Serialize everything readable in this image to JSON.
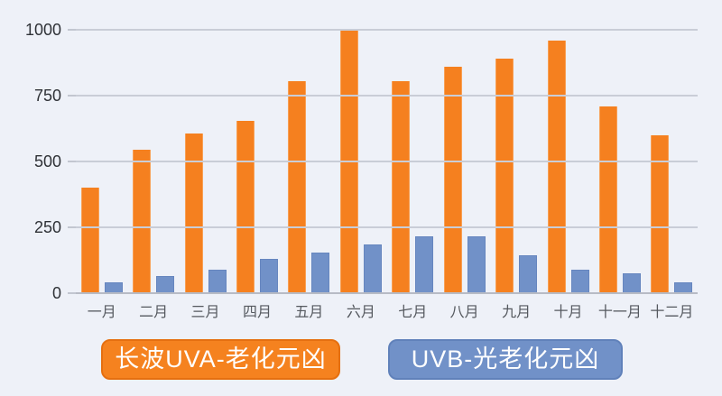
{
  "chart_data": {
    "type": "bar",
    "title": "",
    "xlabel": "",
    "ylabel": "",
    "categories": [
      "一月",
      "二月",
      "三月",
      "四月",
      "五月",
      "六月",
      "七月",
      "八月",
      "九月",
      "十月",
      "十一月",
      "十二月"
    ],
    "series": [
      {
        "name": "长波UVA-老化元凶",
        "color": "#f5801f",
        "values": [
          400,
          545,
          605,
          655,
          805,
          995,
          805,
          860,
          890,
          960,
          710,
          600
        ]
      },
      {
        "name": "UVB-光老化元凶",
        "color": "#7191c8",
        "values": [
          40,
          65,
          90,
          130,
          155,
          185,
          215,
          215,
          145,
          90,
          75,
          40
        ]
      }
    ],
    "ylim": [
      0,
      1000
    ],
    "yticks": [
      0,
      250,
      500,
      750,
      1000
    ],
    "grid": true,
    "legend_position": "bottom"
  },
  "colors": {
    "background": "#eef1f8",
    "gridline": "#c9cdd7",
    "axis_line": "#b7bbc5",
    "tick_label_text": "#2f3237",
    "category_label_text": "#55595f",
    "legend_text": "#ffffff",
    "series_uva": "#f5801f",
    "series_uvb": "#7191c8"
  }
}
